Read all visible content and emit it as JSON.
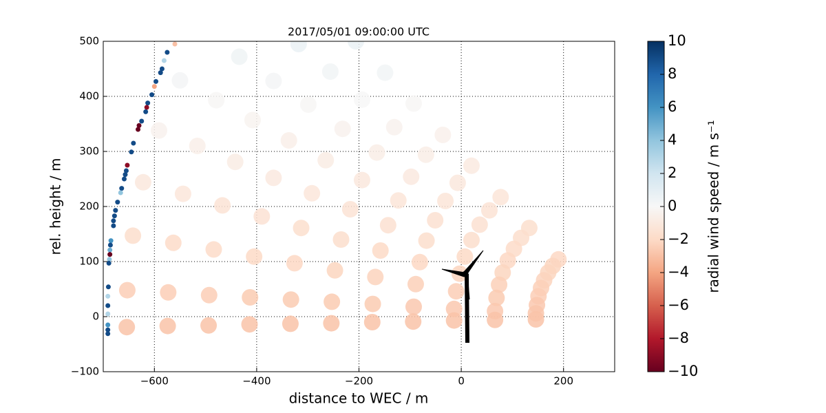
{
  "chart_data": {
    "type": "scatter",
    "title": "2017/05/01 09:00:00 UTC",
    "x_label": "distance to WEC / m",
    "y_label": "rel. height / m",
    "xlim": [
      -700,
      300
    ],
    "ylim": [
      -100,
      500
    ],
    "xticks": [
      {
        "value": -600,
        "label": "−600"
      },
      {
        "value": -400,
        "label": "−400"
      },
      {
        "value": -200,
        "label": "−200"
      },
      0,
      200
    ],
    "yticks": [
      {
        "value": -100,
        "label": "−100"
      },
      0,
      100,
      200,
      300,
      400,
      500
    ],
    "grid": true,
    "colorbar": {
      "label": "radial wind speed / m s⁻¹",
      "clim": [
        -10,
        10
      ],
      "cmap": [
        "#67001f",
        "#b2182b",
        "#d6604d",
        "#f4a582",
        "#fddbc7",
        "#f7f7f7",
        "#d1e5f0",
        "#92c5de",
        "#4393c3",
        "#2166ac",
        "#053061"
      ],
      "ticks": [
        {
          "value": -10,
          "label": "−10"
        },
        {
          "value": -8,
          "label": "−8"
        },
        {
          "value": -6,
          "label": "−6"
        },
        {
          "value": -4,
          "label": "−4"
        },
        {
          "value": -2,
          "label": "−2"
        },
        0,
        2,
        4,
        6,
        8,
        10
      ]
    },
    "series": [
      {
        "x": [
          190,
          133,
          77,
          20,
          -36,
          -93,
          -149,
          -206,
          179,
          117,
          55,
          -7,
          -69,
          -131,
          -194,
          -256,
          -318,
          170,
          103,
          36,
          -31,
          -98,
          -165,
          -232,
          -299,
          -367,
          -434,
          162,
          91,
          20,
          -51,
          -123,
          -194,
          -265,
          -337,
          -408,
          -479,
          -550,
          156,
          81,
          7,
          -68,
          -143,
          -217,
          -292,
          -367,
          -442,
          -516,
          -591,
          151,
          74,
          -3,
          -81,
          -158,
          -235,
          -313,
          -390,
          -467,
          -544,
          -622,
          148,
          69,
          -10,
          -89,
          -168,
          -247,
          -326,
          -405,
          -484,
          -563,
          -642,
          146,
          66,
          -14,
          -93,
          -173,
          -253,
          -333,
          -413,
          -493,
          -573,
          -653,
          146,
          66,
          -14,
          -94,
          -174,
          -254,
          -334,
          -414,
          -494,
          -574,
          -654
        ],
        "y": [
          104,
          161,
          217,
          274,
          330,
          387,
          443,
          500,
          92,
          143,
          193,
          243,
          294,
          344,
          394,
          445,
          495,
          80,
          123,
          167,
          210,
          254,
          298,
          341,
          385,
          428,
          472,
          66,
          102,
          139,
          175,
          211,
          248,
          284,
          320,
          357,
          393,
          429,
          52,
          80,
          109,
          138,
          166,
          195,
          224,
          252,
          281,
          310,
          338,
          37,
          58,
          78,
          99,
          120,
          140,
          161,
          182,
          202,
          223,
          244,
          21,
          34,
          46,
          59,
          72,
          84,
          97,
          109,
          122,
          134,
          147,
          6,
          10,
          14,
          18,
          23,
          27,
          31,
          35,
          39,
          44,
          48,
          -5,
          -6,
          -7,
          -9,
          -10,
          -12,
          -13,
          -14,
          -16,
          -17,
          -19
        ],
        "values": [
          -2.1,
          -1.7,
          -1.3,
          -0.9,
          -0.5,
          -0.1,
          0.3,
          0.7,
          -2.2,
          -1.8,
          -1.4,
          -1.1,
          -0.7,
          -0.4,
          0.0,
          0.3,
          0.7,
          -2.2,
          -1.9,
          -1.6,
          -1.3,
          -1.0,
          -0.7,
          -0.4,
          -0.1,
          0.2,
          0.5,
          -2.3,
          -2.1,
          -1.8,
          -1.6,
          -1.3,
          -1.1,
          -0.8,
          -0.6,
          -0.3,
          -0.1,
          0.2,
          -2.4,
          -2.2,
          -2.0,
          -1.8,
          -1.6,
          -1.4,
          -1.2,
          -1.0,
          -0.8,
          -0.6,
          -0.4,
          -2.5,
          -2.4,
          -2.3,
          -2.1,
          -2.0,
          -1.8,
          -1.7,
          -1.5,
          -1.4,
          -1.2,
          -1.1,
          -2.7,
          -2.6,
          -2.5,
          -2.4,
          -2.3,
          -2.2,
          -2.1,
          -2.0,
          -1.9,
          -1.9,
          -1.8,
          -2.8,
          -2.7,
          -2.7,
          -2.7,
          -2.6,
          -2.6,
          -2.6,
          -2.6,
          -2.5,
          -2.5,
          -2.5,
          -2.9,
          -2.9,
          -2.9,
          -2.9,
          -2.9,
          -2.9,
          -2.9,
          -2.9,
          -2.9,
          -2.9,
          -2.9
        ]
      },
      {
        "x": [
          -560,
          -575,
          -581,
          -585,
          -588,
          -597,
          -600,
          -605,
          -613,
          -615,
          -617,
          -625,
          -630,
          -632,
          -641,
          -645,
          -653,
          -655,
          -657,
          -659,
          -664,
          -666,
          -672,
          -676,
          -678,
          -680,
          -680,
          -685,
          -686,
          -687,
          -687,
          -688,
          -689,
          -690,
          -691,
          -691,
          -691,
          -691,
          -691,
          -691
        ],
        "y": [
          495,
          480,
          465,
          450,
          443,
          427,
          418,
          403,
          388,
          380,
          372,
          355,
          347,
          340,
          315,
          299,
          275,
          265,
          258,
          250,
          233,
          225,
          208,
          193,
          183,
          174,
          165,
          138,
          130,
          121,
          113,
          104,
          97,
          54,
          37,
          20,
          5,
          -15,
          -24,
          -31
        ],
        "values": [
          -3,
          9,
          3,
          9,
          9,
          9,
          -4,
          9,
          9,
          -9,
          9,
          9,
          -10,
          -10,
          9,
          9,
          -9,
          9,
          9,
          9,
          9,
          4,
          9,
          9,
          9,
          9,
          9,
          6,
          9,
          5,
          -10,
          4,
          9,
          9,
          3,
          9,
          3,
          6,
          9,
          9
        ]
      }
    ]
  }
}
